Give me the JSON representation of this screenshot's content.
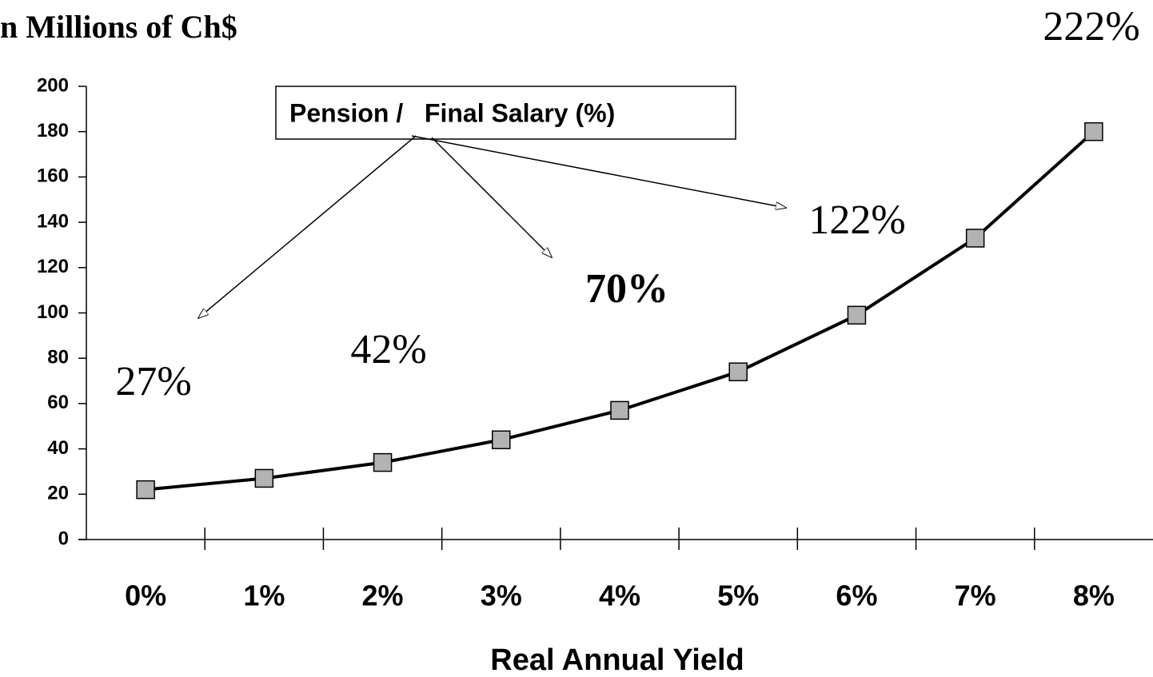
{
  "chart_data": {
    "type": "line",
    "title": "n Millions of Ch$",
    "x_label": "Real Annual Yield",
    "categories": [
      "0%",
      "1%",
      "2%",
      "3%",
      "4%",
      "5%",
      "6%",
      "7%",
      "8%"
    ],
    "values": [
      22,
      27,
      34,
      44,
      57,
      74,
      99,
      133,
      180
    ],
    "color": "#000000",
    "marker_color": "#b3b3b3",
    "ylim": [
      0,
      200
    ],
    "yticks": [
      0,
      20,
      40,
      60,
      80,
      100,
      120,
      140,
      160,
      180,
      200
    ],
    "box_label": "Pension /   Final Salary (%)",
    "annotations": [
      "27%",
      "42%",
      "70%",
      "122%",
      "222%"
    ]
  }
}
